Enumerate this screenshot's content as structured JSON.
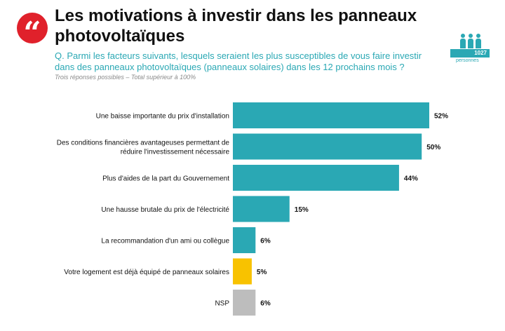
{
  "header": {
    "quote_symbol": "“",
    "title_line1": "Les motivations à investir dans les panneaux",
    "title_line2": "photovoltaïques",
    "question_line1": "Q. Parmi les facteurs suivants, lesquels seraient les plus susceptibles de vous faire investir",
    "question_line2": "dans des panneaux photovoltaïques (panneaux solaires) dans les 12 prochains mois ?",
    "note": "Trois réponses possibles – Total supérieur à 100%"
  },
  "sample": {
    "count": "1027",
    "label": "personnes",
    "icon": "people-icon",
    "color": "#2aa8b4"
  },
  "colors": {
    "teal": "#2aa8b4",
    "yellow": "#f8c200",
    "gray": "#bdbdbd",
    "accent_red": "#e0212b"
  },
  "chart_data": {
    "type": "bar",
    "orientation": "horizontal",
    "categories": [
      [
        "Une baisse importante du prix d'installation"
      ],
      [
        "Des conditions financières avantageuses permettant de",
        "réduire l'investissement nécessaire"
      ],
      [
        "Plus d'aides de la part du Gouvernement"
      ],
      [
        "Une hausse brutale du prix de l'électricité"
      ],
      [
        "La recommandation d'un ami ou collègue"
      ],
      [
        "Votre logement est déjà équipé de panneaux solaires"
      ],
      [
        "NSP"
      ]
    ],
    "values": [
      52,
      50,
      44,
      15,
      6,
      5,
      6
    ],
    "value_labels": [
      "52%",
      "50%",
      "44%",
      "15%",
      "6%",
      "5%",
      "6%"
    ],
    "bar_colors": [
      "#2aa8b4",
      "#2aa8b4",
      "#2aa8b4",
      "#2aa8b4",
      "#2aa8b4",
      "#f8c200",
      "#bdbdbd"
    ],
    "xlim": [
      0,
      52
    ],
    "grid": false,
    "legend": "none"
  }
}
